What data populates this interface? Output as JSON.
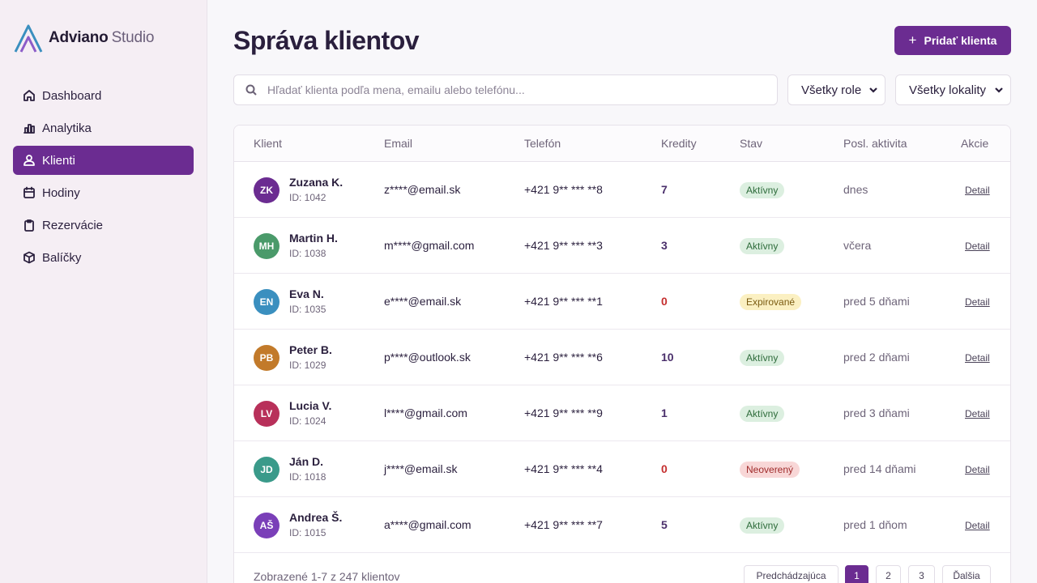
{
  "brand": {
    "name_bold": "Adviano",
    "name_light": "Studio"
  },
  "nav": [
    {
      "label": "Dashboard",
      "icon": "home-icon"
    },
    {
      "label": "Analytika",
      "icon": "bar-chart-icon"
    },
    {
      "label": "Klienti",
      "icon": "users-icon",
      "active": true
    },
    {
      "label": "Hodiny",
      "icon": "calendar-icon"
    },
    {
      "label": "Rezervácie",
      "icon": "clipboard-icon"
    },
    {
      "label": "Balíčky",
      "icon": "package-icon"
    }
  ],
  "page": {
    "title": "Správa klientov",
    "add_button": "Pridať klienta",
    "add_icon": "+"
  },
  "search": {
    "placeholder": "Hľadať klienta podľa mena, emailu alebo telefónu...",
    "value": ""
  },
  "filters": {
    "role": "Všetky role",
    "location": "Všetky lokality"
  },
  "table": {
    "headers": {
      "client": "Klient",
      "email": "Email",
      "phone": "Telefón",
      "credits": "Kredity",
      "status": "Stav",
      "activity": "Posl. aktivita",
      "actions": "Akcie"
    },
    "rows": [
      {
        "initials": "ZK",
        "color": "#6b2c91",
        "name": "Zuzana K.",
        "id": "ID: 1042",
        "email": "z****@email.sk",
        "phone": "+421 9** *** **8",
        "credits": "7",
        "status": "Aktívny",
        "status_type": "green",
        "activity": "dnes",
        "action": "Detail"
      },
      {
        "initials": "MH",
        "color": "#4a9a6a",
        "name": "Martin H.",
        "id": "ID: 1038",
        "email": "m****@gmail.com",
        "phone": "+421 9** *** **3",
        "credits": "3",
        "status": "Aktívny",
        "status_type": "green",
        "activity": "včera",
        "action": "Detail"
      },
      {
        "initials": "EN",
        "color": "#3a8fbf",
        "name": "Eva N.",
        "id": "ID: 1035",
        "email": "e****@email.sk",
        "phone": "+421 9** *** **1",
        "credits": "0",
        "status": "Expirované",
        "status_type": "yellow",
        "activity": "pred 5 dňami",
        "action": "Detail"
      },
      {
        "initials": "PB",
        "color": "#c27a2a",
        "name": "Peter B.",
        "id": "ID: 1029",
        "email": "p****@outlook.sk",
        "phone": "+421 9** *** **6",
        "credits": "10",
        "status": "Aktívny",
        "status_type": "green",
        "activity": "pred 2 dňami",
        "action": "Detail"
      },
      {
        "initials": "LV",
        "color": "#b8305a",
        "name": "Lucia V.",
        "id": "ID: 1024",
        "email": "l****@gmail.com",
        "phone": "+421 9** *** **9",
        "credits": "1",
        "status": "Aktívny",
        "status_type": "green",
        "activity": "pred 3 dňami",
        "action": "Detail"
      },
      {
        "initials": "JD",
        "color": "#3a9a8a",
        "name": "Ján D.",
        "id": "ID: 1018",
        "email": "j****@email.sk",
        "phone": "+421 9** *** **4",
        "credits": "0",
        "status": "Neoverený",
        "status_type": "red",
        "activity": "pred 14 dňami",
        "action": "Detail"
      },
      {
        "initials": "AŠ",
        "color": "#7a3fb8",
        "name": "Andrea Š.",
        "id": "ID: 1015",
        "email": "a****@gmail.com",
        "phone": "+421 9** *** **7",
        "credits": "5",
        "status": "Aktívny",
        "status_type": "green",
        "activity": "pred 1 dňom",
        "action": "Detail"
      }
    ]
  },
  "footer": {
    "summary": "Zobrazené 1-7 z 247 klientov",
    "prev": "Predchádzajúca",
    "pages": [
      "1",
      "2",
      "3"
    ],
    "current_page": "1",
    "next": "Ďalšia"
  }
}
